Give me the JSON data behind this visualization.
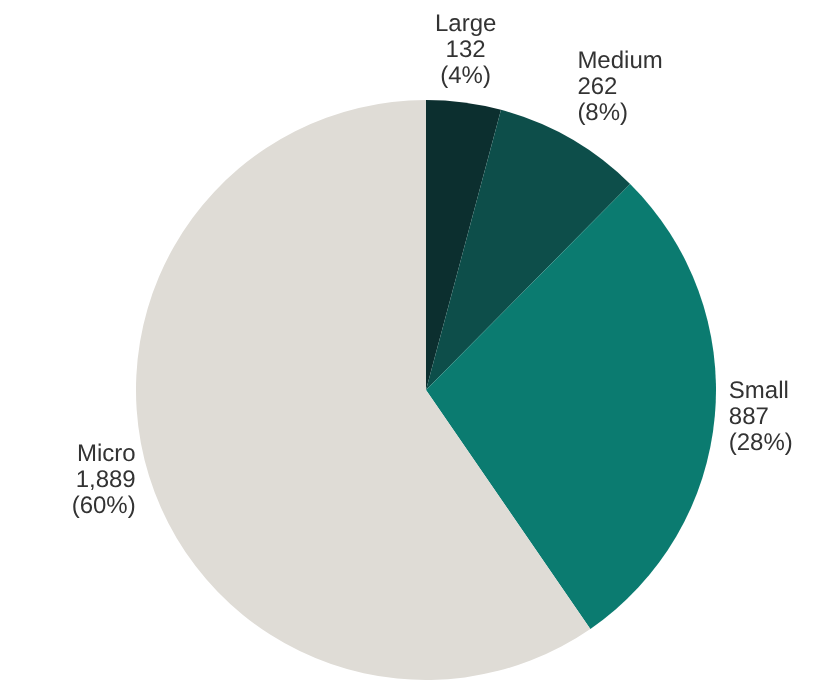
{
  "chart_data": {
    "type": "pie",
    "categories": [
      "Large",
      "Medium",
      "Small",
      "Micro"
    ],
    "values": [
      132,
      262,
      887,
      1889
    ],
    "value_labels": [
      "132\n(4%)",
      "262\n(8%)",
      "887\n(28%)",
      "1,889\n(60%)"
    ],
    "colors": [
      "#0c2f2f",
      "#0d4e4a",
      "#0b7b70",
      "#dfdcd6"
    ],
    "legend": false
  }
}
